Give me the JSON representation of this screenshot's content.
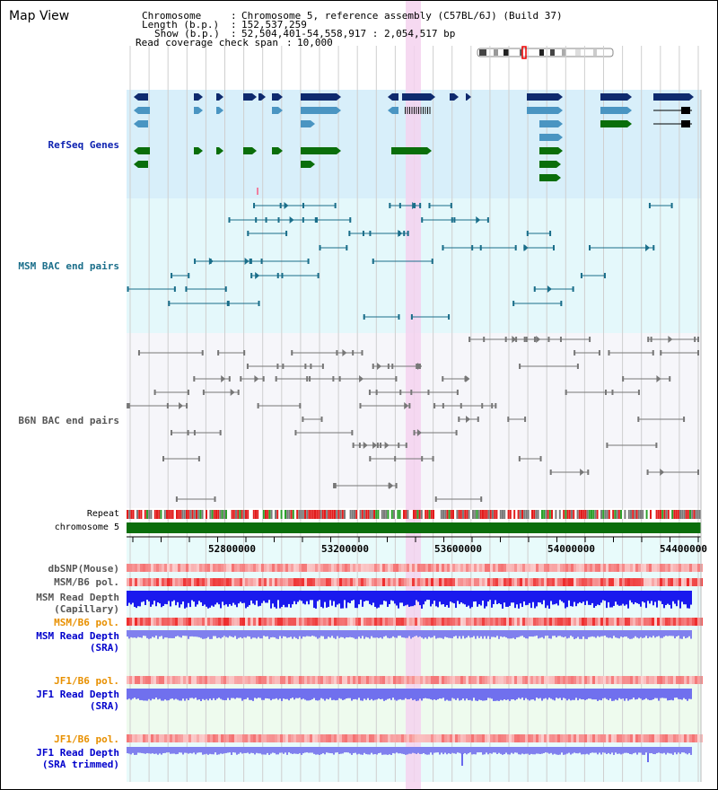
{
  "title": "Map View",
  "header": {
    "chromosome_key": "Chromosome",
    "chromosome_val": "Chromosome 5, reference assembly (C57BL/6J) (Build 37)",
    "length_key": "Length (b.p.)",
    "length_val": "152,537,259",
    "show_key": "Show (b.p.)",
    "show_val": "52,504,401-54,558,917 : 2,054,517 bp",
    "coverage_key": "Read coverage check span",
    "coverage_val": "10,000"
  },
  "tracks": {
    "refseq": "RefSeq Genes",
    "msm_bac": "MSM BAC end pairs",
    "b6n_bac": "B6N BAC end pairs",
    "repeat": "Repeat",
    "chromosome": "chromosome 5",
    "dbsnp": "dbSNP(Mouse)",
    "msm_b6_pol": "MSM/B6 pol.",
    "msm_depth_cap_1": "MSM Read Depth",
    "msm_depth_cap_2": "(Capillary)",
    "msm_b6_pol_2": "MSM/B6 pol.",
    "msm_depth_sra_1": "MSM Read Depth",
    "msm_depth_sra_2": "(SRA)",
    "jf1_pol": "JF1/B6 pol.",
    "jf1_depth_1": "JF1 Read Depth",
    "jf1_depth_2": "(SRA)",
    "jf1_pol_2": "JF1/B6 pol.",
    "jf1_trim_1": "JF1 Read Depth",
    "jf1_trim_2": "(SRA trimmed)"
  },
  "axis_ticks": [
    "52800000",
    "53200000",
    "53600000",
    "54000000",
    "54400000"
  ],
  "colors": {
    "refseq_bg": "#d8effa",
    "msm_bg": "#e4f8fb",
    "b6n_bg": "#f6f6fa",
    "highlight": "#f5d2ef",
    "navy": "#0e2a6e",
    "steel": "#4a95c2",
    "green": "#0a6e0a",
    "teal": "#1a6e8a",
    "gray": "#777777",
    "blue_depth": "#1a1aee",
    "purple_depth": "#8888ee",
    "pol_label": "#e89000",
    "depth_label": "#0000cc"
  }
}
